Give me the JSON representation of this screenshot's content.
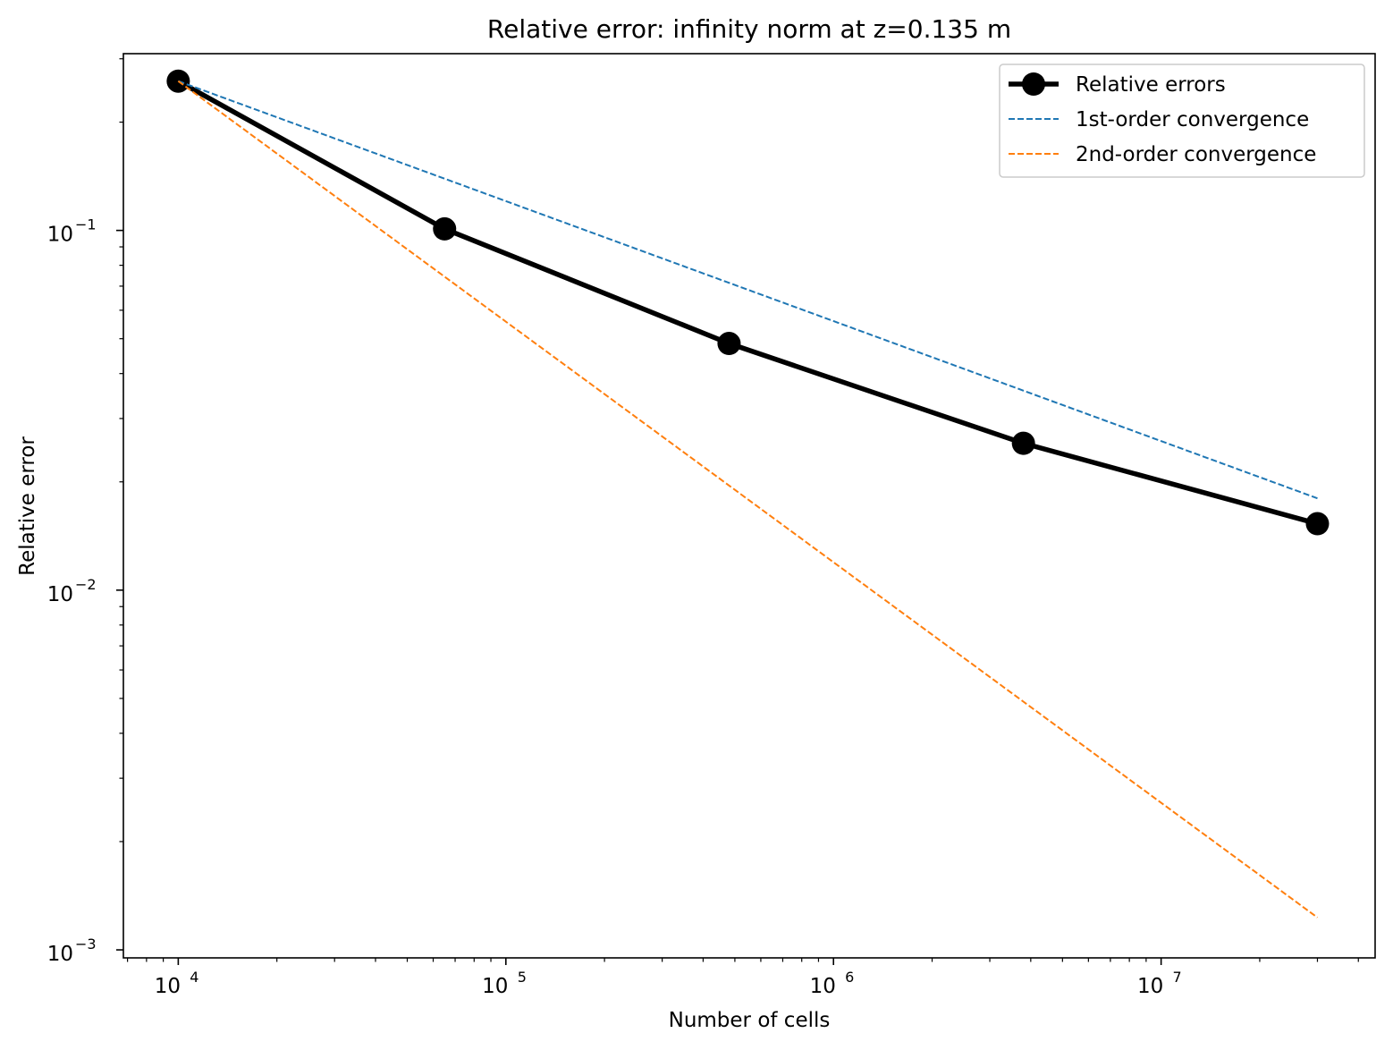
{
  "chart_data": {
    "type": "line",
    "title": "Relative error: infinity norm at z=0.135 m",
    "xlabel": "Number of cells",
    "ylabel": "Relative error",
    "xscale": "log",
    "yscale": "log",
    "xlim": [
      6800,
      45000000
    ],
    "ylim": [
      0.00095,
      0.31
    ],
    "xticks": [
      {
        "value": 10000,
        "base": "10",
        "exp": "4"
      },
      {
        "value": 100000,
        "base": "10",
        "exp": "5"
      },
      {
        "value": 1000000,
        "base": "10",
        "exp": "6"
      },
      {
        "value": 10000000,
        "base": "10",
        "exp": "7"
      }
    ],
    "yticks": [
      {
        "value": 0.001,
        "base": "10",
        "exp": "−3"
      },
      {
        "value": 0.01,
        "base": "10",
        "exp": "−2"
      },
      {
        "value": 0.1,
        "base": "10",
        "exp": "−1"
      }
    ],
    "grid": false,
    "legend_position": "top-right",
    "series": [
      {
        "name": "Relative errors",
        "color": "#000000",
        "style": "solid",
        "marker": "circle",
        "x": [
          10000,
          65000,
          480000,
          3800000,
          30000000
        ],
        "y": [
          0.26,
          0.101,
          0.0485,
          0.0256,
          0.0153
        ]
      },
      {
        "name": "1st-order convergence",
        "color": "#1f77b4",
        "style": "dashed",
        "marker": "none",
        "x": [
          10000,
          30000000
        ],
        "y": [
          0.26,
          0.018
        ]
      },
      {
        "name": "2nd-order convergence",
        "color": "#ff7f0e",
        "style": "dashed",
        "marker": "none",
        "x": [
          10000,
          30000000
        ],
        "y": [
          0.26,
          0.00123
        ]
      }
    ]
  }
}
